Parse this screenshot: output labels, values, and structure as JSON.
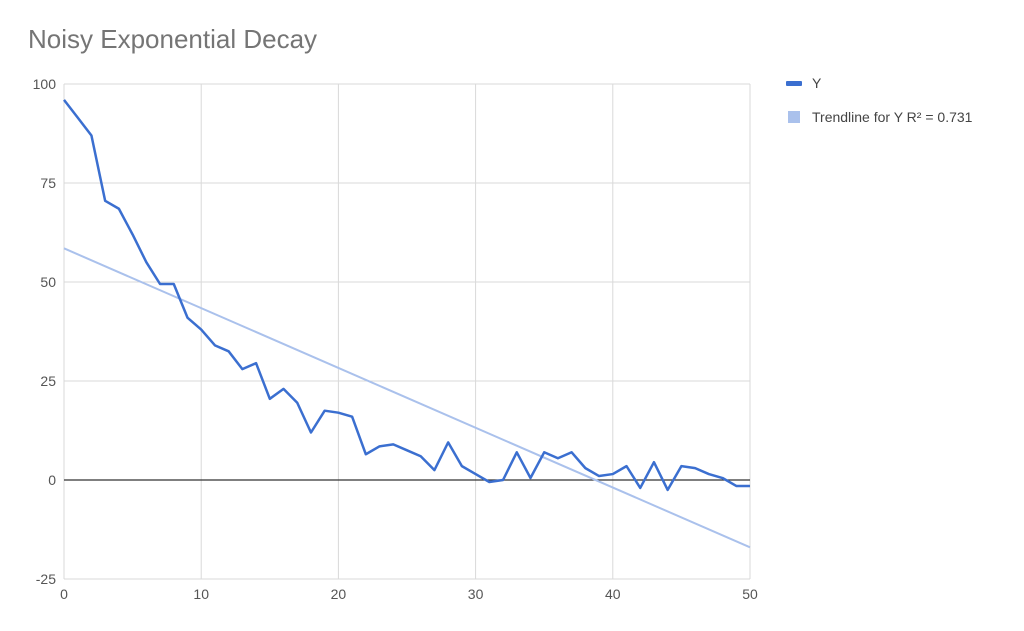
{
  "chart_data": {
    "type": "line",
    "title": "Noisy Exponential Decay",
    "xlabel": "",
    "ylabel": "",
    "xlim": [
      0,
      50
    ],
    "ylim": [
      -25,
      100
    ],
    "x_ticks": [
      0,
      10,
      20,
      30,
      40,
      50
    ],
    "y_ticks": [
      -25,
      0,
      25,
      50,
      75,
      100
    ],
    "grid": true,
    "legend_position": "right",
    "series": [
      {
        "name": "Y",
        "color": "#3b6fd0",
        "x": [
          0,
          1,
          2,
          3,
          4,
          5,
          6,
          7,
          8,
          9,
          10,
          11,
          12,
          13,
          14,
          15,
          16,
          17,
          18,
          19,
          20,
          21,
          22,
          23,
          24,
          25,
          26,
          27,
          28,
          29,
          30,
          31,
          32,
          33,
          34,
          35,
          36,
          37,
          38,
          39,
          40,
          41,
          42,
          43,
          44,
          45,
          46,
          47,
          48,
          49,
          50
        ],
        "values": [
          96,
          91.5,
          87,
          70.5,
          68.5,
          62,
          55,
          49.5,
          49.5,
          41,
          38,
          34,
          32.5,
          28,
          29.5,
          20.5,
          23,
          19.5,
          12,
          17.5,
          17,
          16,
          6.5,
          8.5,
          9,
          7.5,
          6,
          2.5,
          9.5,
          3.5,
          1.5,
          -0.5,
          0,
          7,
          0.5,
          7,
          5.5,
          7,
          3,
          1,
          1.5,
          3.5,
          -2,
          4.5,
          -2.5,
          3.5,
          3,
          1.5,
          0.5,
          -1.5,
          -1.5
        ]
      },
      {
        "name": "Trendline for Y R² = 0.731",
        "color": "#aac1ec",
        "type": "trendline",
        "x": [
          0,
          50
        ],
        "values": [
          58.5,
          -17
        ]
      }
    ]
  }
}
